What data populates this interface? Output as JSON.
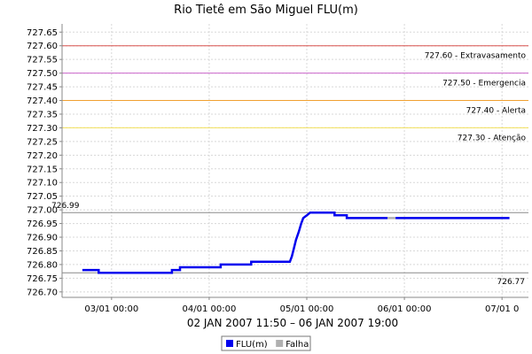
{
  "chart_data": {
    "type": "line",
    "title": "Rio Tietê em São Miguel FLU(m)",
    "xlabel": "02 JAN 2007 11:50 – 06 JAN 2007 19:00",
    "ylim": [
      726.68,
      727.68
    ],
    "xlim": [
      0,
      114.67
    ],
    "y_ticks": [
      "726.70",
      "726.75",
      "726.80",
      "726.85",
      "726.90",
      "726.95",
      "727.00",
      "727.05",
      "727.10",
      "727.15",
      "727.20",
      "727.25",
      "727.30",
      "727.35",
      "727.40",
      "727.45",
      "727.50",
      "727.55",
      "727.60",
      "727.65"
    ],
    "x_ticks": [
      {
        "label": "03/01 00:00",
        "hours": 12.17
      },
      {
        "label": "04/01 00:00",
        "hours": 36.17
      },
      {
        "label": "05/01 00:00",
        "hours": 60.17
      },
      {
        "label": "06/01 00:00",
        "hours": 84.17
      },
      {
        "label": "07/01 0",
        "hours": 108.17
      }
    ],
    "grid": true,
    "legend_position": "bottom",
    "threshold_lines": [
      {
        "value": 727.6,
        "label": "727.60 - Extravasamento",
        "color": "#d9534f"
      },
      {
        "value": 727.5,
        "label": "727.50 - Emergencia",
        "color": "#cc66cc"
      },
      {
        "value": 727.4,
        "label": "727.40 - Alerta",
        "color": "#f0a030"
      },
      {
        "value": 727.3,
        "label": "727.30 - Atenção",
        "color": "#f2e05a"
      }
    ],
    "marker_lines": [
      {
        "value": 726.99,
        "label": "726.99",
        "label_side": "left"
      },
      {
        "value": 726.77,
        "label": "726.77",
        "label_side": "right"
      }
    ],
    "series": [
      {
        "name": "FLU(m)",
        "color": "#0000ee",
        "points": [
          [
            5.0,
            726.78
          ],
          [
            9.0,
            726.78
          ],
          [
            9.0,
            726.77
          ],
          [
            27.0,
            726.77
          ],
          [
            27.0,
            726.78
          ],
          [
            29.0,
            726.78
          ],
          [
            29.0,
            726.79
          ],
          [
            39.0,
            726.79
          ],
          [
            39.0,
            726.8
          ],
          [
            46.5,
            726.8
          ],
          [
            46.5,
            726.81
          ],
          [
            56.0,
            726.81
          ],
          [
            56.5,
            726.83
          ],
          [
            57.0,
            726.86
          ],
          [
            57.5,
            726.89
          ],
          [
            58.2,
            726.92
          ],
          [
            58.8,
            726.95
          ],
          [
            59.3,
            726.97
          ],
          [
            60.2,
            726.98
          ],
          [
            61.0,
            726.99
          ],
          [
            67.0,
            726.99
          ],
          [
            67.0,
            726.98
          ],
          [
            70.0,
            726.98
          ],
          [
            70.0,
            726.97
          ],
          [
            80.0,
            726.97
          ]
        ]
      },
      {
        "name": "Falha",
        "color": "#b0b0b0",
        "points": [
          [
            80.0,
            726.97
          ],
          [
            82.0,
            726.97
          ]
        ]
      },
      {
        "name": "FLU(m)",
        "color": "#0000ee",
        "points": [
          [
            82.0,
            726.97
          ],
          [
            110.0,
            726.97
          ]
        ]
      }
    ],
    "legend": [
      {
        "label": "FLU(m)",
        "color": "#0000ee"
      },
      {
        "label": "Falha",
        "color": "#b0b0b0"
      }
    ]
  }
}
